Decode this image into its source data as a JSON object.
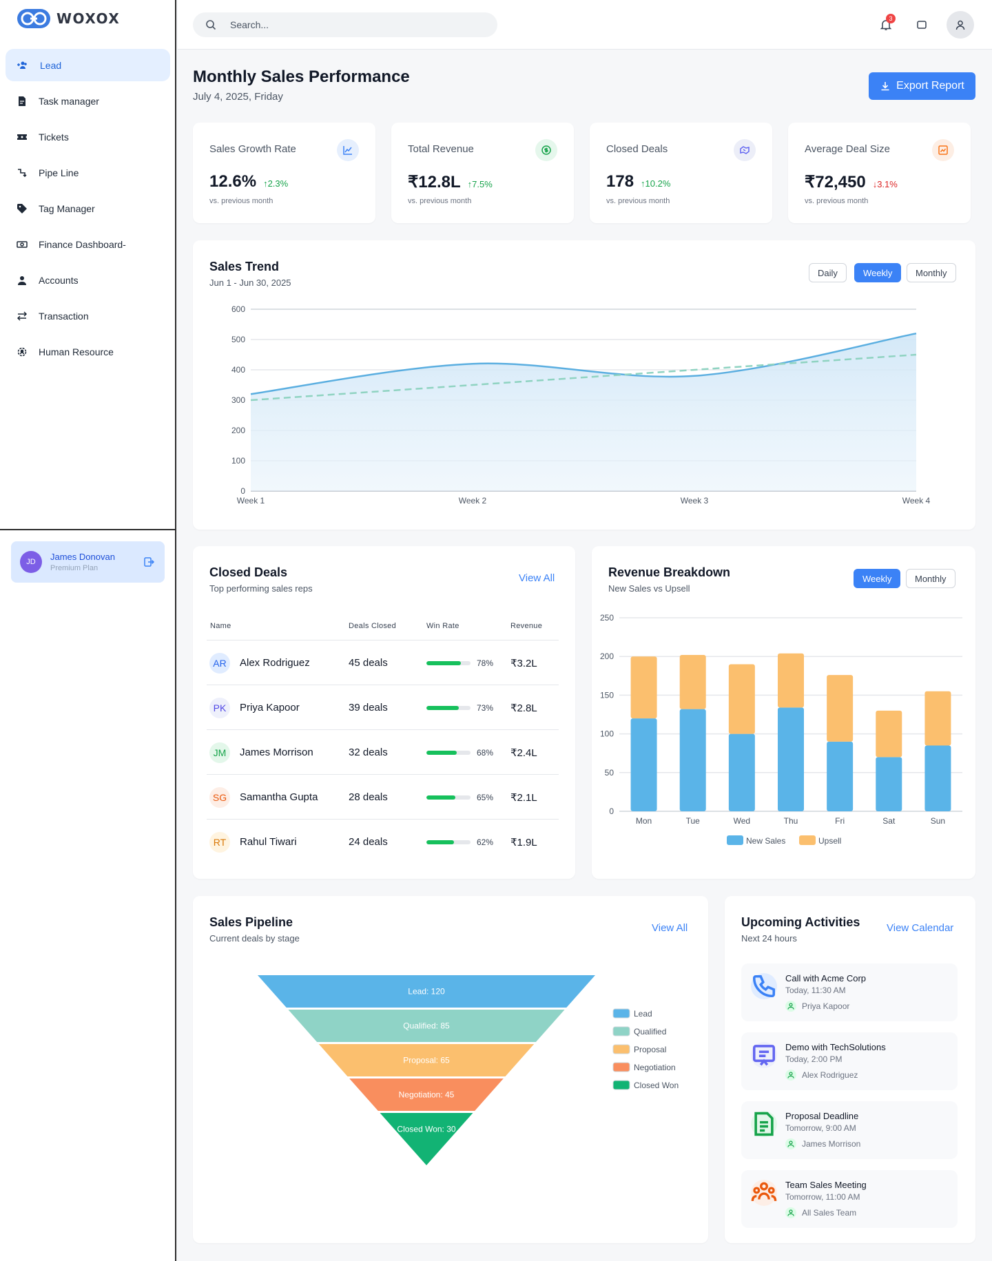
{
  "brand": {
    "name": "WOXOX"
  },
  "sidebar": {
    "items": [
      {
        "label": "Lead",
        "icon": "users-add-icon",
        "active": true
      },
      {
        "label": "Task manager",
        "icon": "document-icon"
      },
      {
        "label": "Tickets",
        "icon": "ticket-icon"
      },
      {
        "label": "Pipe Line",
        "icon": "pipeline-icon"
      },
      {
        "label": "Tag Manager",
        "icon": "tag-icon"
      },
      {
        "label": "Finance Dashboard-",
        "icon": "money-icon"
      },
      {
        "label": "Accounts",
        "icon": "user-icon"
      },
      {
        "label": "Transaction",
        "icon": "swap-icon"
      },
      {
        "label": "Human Resource",
        "icon": "gear-people-icon"
      }
    ],
    "user": {
      "initials": "JD",
      "name": "James Donovan",
      "plan": "Premium Plan"
    }
  },
  "topbar": {
    "search_placeholder": "Search...",
    "notification_count": "3"
  },
  "header": {
    "title": "Monthly Sales Performance",
    "date": "July 4, 2025, Friday",
    "export_label": "Export Report"
  },
  "kpis": [
    {
      "label": "Sales Growth Rate",
      "value": "12.6%",
      "change": "2.3%",
      "direction": "up",
      "sub": "vs. previous month",
      "icon": "line-chart-icon",
      "color": "#3b82f6"
    },
    {
      "label": "Total Revenue",
      "value": "₹12.8L",
      "change": "7.5%",
      "direction": "up",
      "sub": "vs. previous month",
      "icon": "dollar-coin-icon",
      "color": "#16a34a"
    },
    {
      "label": "Closed Deals",
      "value": "178",
      "change": "10.2%",
      "direction": "up",
      "sub": "vs. previous month",
      "icon": "handshake-icon",
      "color": "#6366f1"
    },
    {
      "label": "Average Deal Size",
      "value": "₹72,450",
      "change": "3.1%",
      "direction": "down",
      "sub": "vs. previous month",
      "icon": "trend-chart-icon",
      "color": "#f97316"
    }
  ],
  "sales_trend": {
    "title": "Sales Trend",
    "range": "Jun 1 - Jun 30, 2025",
    "toggles": [
      "Daily",
      "Weekly",
      "Monthly"
    ],
    "active_toggle": "Weekly"
  },
  "closed_deals": {
    "title": "Closed Deals",
    "subtitle": "Top performing sales reps",
    "view_all": "View All",
    "columns": [
      "Name",
      "Deals Closed",
      "Win Rate",
      "Revenue"
    ],
    "rows": [
      {
        "initials": "AR",
        "name": "Alex Rodriguez",
        "deals": "45 deals",
        "win_rate": 78,
        "win_label": "78%",
        "revenue": "₹3.2L",
        "bg": "#e0ecff",
        "fg": "#2563eb"
      },
      {
        "initials": "PK",
        "name": "Priya Kapoor",
        "deals": "39 deals",
        "win_rate": 73,
        "win_label": "73%",
        "revenue": "₹2.8L",
        "bg": "#eef0fb",
        "fg": "#4f46e5"
      },
      {
        "initials": "JM",
        "name": "James Morrison",
        "deals": "32 deals",
        "win_rate": 68,
        "win_label": "68%",
        "revenue": "₹2.4L",
        "bg": "#e3f7ea",
        "fg": "#16a34a"
      },
      {
        "initials": "SG",
        "name": "Samantha Gupta",
        "deals": "28 deals",
        "win_rate": 65,
        "win_label": "65%",
        "revenue": "₹2.1L",
        "bg": "#fdeee6",
        "fg": "#ea580c"
      },
      {
        "initials": "RT",
        "name": "Rahul Tiwari",
        "deals": "24 deals",
        "win_rate": 62,
        "win_label": "62%",
        "revenue": "₹1.9L",
        "bg": "#fff4e0",
        "fg": "#d97706"
      }
    ]
  },
  "revenue_breakdown": {
    "title": "Revenue Breakdown",
    "subtitle": "New Sales vs Upsell",
    "toggles": [
      "Weekly",
      "Monthly"
    ],
    "active_toggle": "Weekly"
  },
  "pipeline": {
    "title": "Sales Pipeline",
    "subtitle": "Current deals by stage",
    "view_all": "View All"
  },
  "activities": {
    "title": "Upcoming Activities",
    "subtitle": "Next 24 hours",
    "view_calendar": "View Calendar",
    "items": [
      {
        "title": "Call with Acme Corp",
        "time": "Today, 11:30 AM",
        "who": "Priya Kapoor",
        "icon": "phone-icon",
        "bg": "#e0ecff",
        "fg": "#3b82f6"
      },
      {
        "title": "Demo with TechSolutions",
        "time": "Today, 2:00 PM",
        "who": "Alex Rodriguez",
        "icon": "presentation-icon",
        "bg": "#eef0fb",
        "fg": "#6366f1"
      },
      {
        "title": "Proposal Deadline",
        "time": "Tomorrow, 9:00 AM",
        "who": "James Morrison",
        "icon": "file-icon",
        "bg": "#e3f7ea",
        "fg": "#16a34a"
      },
      {
        "title": "Team Sales Meeting",
        "time": "Tomorrow, 11:00 AM",
        "who": "All Sales Team",
        "icon": "team-icon",
        "bg": "#fdeee6",
        "fg": "#ea580c"
      }
    ]
  },
  "chart_data": [
    {
      "type": "line",
      "title": "Sales Trend",
      "x": [
        "Week 1",
        "Week 2",
        "Week 3",
        "Week 4"
      ],
      "ylim": [
        0,
        600
      ],
      "yticks": [
        0,
        100,
        200,
        300,
        400,
        500,
        600
      ],
      "series": [
        {
          "name": "",
          "style": "solid-area",
          "color": "#5aaee0",
          "values": [
            320,
            420,
            380,
            520
          ]
        },
        {
          "name": "",
          "style": "dashed",
          "color": "#8fd3c1",
          "values": [
            300,
            350,
            400,
            450
          ]
        }
      ],
      "grid": true
    },
    {
      "type": "bar",
      "stacked": true,
      "title": "Revenue Breakdown",
      "categories": [
        "Mon",
        "Tue",
        "Wed",
        "Thu",
        "Fri",
        "Sat",
        "Sun"
      ],
      "ylim": [
        0,
        250
      ],
      "yticks": [
        0,
        50,
        100,
        150,
        200,
        250
      ],
      "series": [
        {
          "name": "New Sales",
          "color": "#5ab4e8",
          "values": [
            120,
            132,
            100,
            134,
            90,
            70,
            85
          ]
        },
        {
          "name": "Upsell",
          "color": "#fbbf6e",
          "values": [
            80,
            70,
            90,
            70,
            86,
            60,
            70
          ]
        }
      ],
      "legend": "bottom",
      "grid": true
    },
    {
      "type": "funnel",
      "title": "Sales Pipeline",
      "stages": [
        {
          "name": "Lead",
          "value": 120,
          "label": "Lead: 120",
          "color": "#5ab4e8"
        },
        {
          "name": "Qualified",
          "value": 85,
          "label": "Qualified: 85",
          "color": "#8fd3c6"
        },
        {
          "name": "Proposal",
          "value": 65,
          "label": "Proposal: 65",
          "color": "#fbbf6e"
        },
        {
          "name": "Negotiation",
          "value": 45,
          "label": "Negotiation: 45",
          "color": "#f98e5e"
        },
        {
          "name": "Closed Won",
          "value": 30,
          "label": "Closed Won: 30",
          "color": "#12b374"
        }
      ],
      "legend": "right"
    }
  ]
}
